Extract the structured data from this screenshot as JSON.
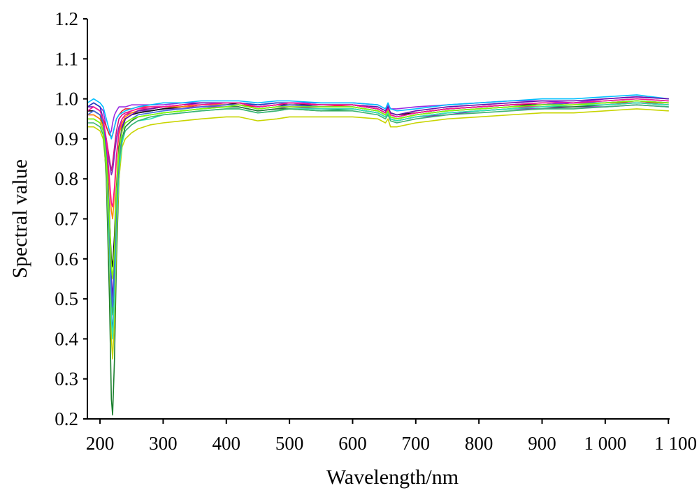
{
  "chart_data": {
    "type": "line",
    "title": "",
    "xlabel": "Wavelength/nm",
    "ylabel": "Spectral value",
    "xlim": [
      180,
      1102
    ],
    "ylim": [
      0.2,
      1.2
    ],
    "x_ticks": [
      200,
      300,
      400,
      500,
      600,
      700,
      800,
      900,
      1000,
      1100
    ],
    "x_tick_labels": [
      "200",
      "300",
      "400",
      "500",
      "600",
      "700",
      "800",
      "900",
      "1 000",
      "1 100"
    ],
    "y_ticks": [
      0.2,
      0.3,
      0.4,
      0.5,
      0.6,
      0.7,
      0.8,
      0.9,
      1.0,
      1.1,
      1.2
    ],
    "y_tick_labels": [
      "0.2",
      "0.3",
      "0.4",
      "0.5",
      "0.6",
      "0.7",
      "0.8",
      "0.9",
      "1.0",
      "1.1",
      "1.2"
    ],
    "grid": false,
    "legend": "none",
    "x": [
      180,
      190,
      200,
      205,
      210,
      215,
      218,
      220,
      223,
      226,
      230,
      235,
      240,
      250,
      260,
      280,
      300,
      330,
      360,
      400,
      420,
      450,
      480,
      500,
      550,
      600,
      640,
      652,
      656,
      660,
      670,
      700,
      750,
      800,
      850,
      900,
      950,
      1000,
      1050,
      1100
    ],
    "series": [
      {
        "color": "#9a2be2",
        "values": [
          0.98,
          0.99,
          0.98,
          0.97,
          0.93,
          0.91,
          0.92,
          0.94,
          0.96,
          0.97,
          0.98,
          0.98,
          0.98,
          0.985,
          0.985,
          0.985,
          0.985,
          0.99,
          0.99,
          0.99,
          0.99,
          0.985,
          0.99,
          0.99,
          0.99,
          0.99,
          0.985,
          0.975,
          0.985,
          0.975,
          0.975,
          0.98,
          0.985,
          0.99,
          0.995,
          0.995,
          0.99,
          1.0,
          1.005,
          1.0
        ]
      },
      {
        "color": "#e8262c",
        "values": [
          0.97,
          0.97,
          0.96,
          0.95,
          0.93,
          0.91,
          0.905,
          0.91,
          0.93,
          0.95,
          0.96,
          0.97,
          0.975,
          0.975,
          0.98,
          0.98,
          0.98,
          0.985,
          0.985,
          0.985,
          0.985,
          0.98,
          0.985,
          0.985,
          0.98,
          0.985,
          0.975,
          0.965,
          0.975,
          0.96,
          0.955,
          0.965,
          0.975,
          0.98,
          0.985,
          0.985,
          0.99,
          0.99,
          0.99,
          0.99
        ]
      },
      {
        "color": "#d6137f",
        "values": [
          0.96,
          0.96,
          0.95,
          0.93,
          0.9,
          0.85,
          0.82,
          0.84,
          0.88,
          0.92,
          0.95,
          0.96,
          0.965,
          0.97,
          0.975,
          0.975,
          0.98,
          0.98,
          0.98,
          0.985,
          0.985,
          0.975,
          0.98,
          0.98,
          0.98,
          0.98,
          0.97,
          0.96,
          0.97,
          0.955,
          0.95,
          0.96,
          0.97,
          0.975,
          0.98,
          0.98,
          0.985,
          0.985,
          0.99,
          0.985
        ]
      },
      {
        "color": "#7b2fbe",
        "values": [
          0.95,
          0.95,
          0.94,
          0.92,
          0.88,
          0.84,
          0.81,
          0.82,
          0.86,
          0.9,
          0.93,
          0.95,
          0.96,
          0.965,
          0.97,
          0.97,
          0.975,
          0.975,
          0.98,
          0.98,
          0.98,
          0.97,
          0.975,
          0.98,
          0.975,
          0.975,
          0.965,
          0.955,
          0.965,
          0.95,
          0.945,
          0.955,
          0.96,
          0.97,
          0.975,
          0.975,
          0.98,
          0.98,
          0.985,
          0.98
        ]
      },
      {
        "color": "#00bfff",
        "values": [
          0.99,
          1.0,
          0.99,
          0.98,
          0.95,
          0.92,
          0.9,
          0.91,
          0.93,
          0.95,
          0.96,
          0.965,
          0.97,
          0.975,
          0.98,
          0.985,
          0.99,
          0.99,
          0.995,
          0.995,
          0.995,
          0.99,
          0.995,
          0.995,
          0.99,
          0.99,
          0.985,
          0.975,
          0.99,
          0.975,
          0.97,
          0.975,
          0.985,
          0.99,
          0.995,
          1.0,
          1.0,
          1.005,
          1.01,
          1.0
        ]
      },
      {
        "color": "#1f3fbf",
        "values": [
          0.98,
          0.99,
          0.98,
          0.95,
          0.85,
          0.65,
          0.45,
          0.42,
          0.55,
          0.72,
          0.85,
          0.92,
          0.95,
          0.96,
          0.965,
          0.97,
          0.975,
          0.98,
          0.985,
          0.99,
          0.99,
          0.985,
          0.99,
          0.99,
          0.985,
          0.985,
          0.975,
          0.965,
          0.975,
          0.96,
          0.955,
          0.965,
          0.975,
          0.98,
          0.985,
          0.99,
          0.99,
          0.995,
          1.0,
          0.995
        ]
      },
      {
        "color": "#1a7f2e",
        "values": [
          0.97,
          0.97,
          0.96,
          0.93,
          0.8,
          0.5,
          0.25,
          0.21,
          0.35,
          0.6,
          0.8,
          0.9,
          0.93,
          0.945,
          0.955,
          0.96,
          0.965,
          0.97,
          0.975,
          0.98,
          0.98,
          0.97,
          0.975,
          0.975,
          0.97,
          0.975,
          0.965,
          0.955,
          0.965,
          0.95,
          0.945,
          0.955,
          0.965,
          0.97,
          0.975,
          0.98,
          0.98,
          0.985,
          0.99,
          0.985
        ]
      },
      {
        "color": "#111111",
        "values": [
          0.97,
          0.97,
          0.96,
          0.94,
          0.86,
          0.7,
          0.6,
          0.58,
          0.66,
          0.78,
          0.88,
          0.93,
          0.95,
          0.96,
          0.965,
          0.97,
          0.975,
          0.98,
          0.985,
          0.985,
          0.99,
          0.98,
          0.985,
          0.985,
          0.985,
          0.985,
          0.975,
          0.965,
          0.98,
          0.965,
          0.96,
          0.965,
          0.975,
          0.98,
          0.985,
          0.985,
          0.99,
          0.99,
          0.995,
          0.99
        ]
      },
      {
        "color": "#c8d400",
        "values": [
          0.93,
          0.93,
          0.92,
          0.9,
          0.82,
          0.6,
          0.4,
          0.35,
          0.45,
          0.65,
          0.8,
          0.88,
          0.9,
          0.915,
          0.925,
          0.935,
          0.94,
          0.945,
          0.95,
          0.955,
          0.955,
          0.945,
          0.95,
          0.955,
          0.955,
          0.955,
          0.95,
          0.94,
          0.95,
          0.93,
          0.93,
          0.94,
          0.95,
          0.955,
          0.96,
          0.965,
          0.965,
          0.97,
          0.975,
          0.97
        ]
      },
      {
        "color": "#2ee6b8",
        "values": [
          0.95,
          0.95,
          0.94,
          0.92,
          0.84,
          0.62,
          0.45,
          0.4,
          0.5,
          0.68,
          0.82,
          0.89,
          0.92,
          0.935,
          0.945,
          0.95,
          0.96,
          0.965,
          0.97,
          0.975,
          0.975,
          0.965,
          0.97,
          0.975,
          0.975,
          0.975,
          0.965,
          0.955,
          0.965,
          0.95,
          0.945,
          0.955,
          0.965,
          0.97,
          0.975,
          0.98,
          0.985,
          0.985,
          0.99,
          0.985
        ]
      },
      {
        "color": "#ff8c00",
        "values": [
          0.96,
          0.96,
          0.95,
          0.93,
          0.87,
          0.78,
          0.72,
          0.7,
          0.76,
          0.85,
          0.91,
          0.94,
          0.955,
          0.965,
          0.97,
          0.975,
          0.98,
          0.98,
          0.985,
          0.985,
          0.985,
          0.975,
          0.98,
          0.985,
          0.98,
          0.98,
          0.97,
          0.96,
          0.97,
          0.955,
          0.95,
          0.96,
          0.97,
          0.975,
          0.98,
          0.985,
          0.985,
          0.99,
          0.995,
          0.99
        ]
      },
      {
        "color": "#6a0dad",
        "values": [
          0.98,
          0.98,
          0.97,
          0.95,
          0.88,
          0.72,
          0.55,
          0.5,
          0.6,
          0.75,
          0.87,
          0.93,
          0.95,
          0.96,
          0.97,
          0.975,
          0.98,
          0.985,
          0.99,
          0.99,
          0.99,
          0.98,
          0.985,
          0.99,
          0.985,
          0.985,
          0.98,
          0.97,
          0.98,
          0.965,
          0.96,
          0.97,
          0.98,
          0.985,
          0.99,
          0.995,
          0.995,
          1.0,
          1.005,
          1.0
        ]
      },
      {
        "color": "#3cb371",
        "values": [
          0.94,
          0.94,
          0.93,
          0.91,
          0.83,
          0.66,
          0.5,
          0.46,
          0.56,
          0.72,
          0.84,
          0.9,
          0.92,
          0.935,
          0.945,
          0.955,
          0.96,
          0.965,
          0.97,
          0.975,
          0.975,
          0.965,
          0.97,
          0.975,
          0.97,
          0.97,
          0.96,
          0.95,
          0.96,
          0.945,
          0.94,
          0.95,
          0.96,
          0.965,
          0.97,
          0.975,
          0.975,
          0.98,
          0.985,
          0.98
        ]
      },
      {
        "color": "#4169e1",
        "values": [
          0.96,
          0.97,
          0.96,
          0.94,
          0.86,
          0.68,
          0.52,
          0.48,
          0.58,
          0.74,
          0.86,
          0.92,
          0.94,
          0.95,
          0.96,
          0.965,
          0.97,
          0.975,
          0.98,
          0.985,
          0.985,
          0.975,
          0.98,
          0.985,
          0.98,
          0.98,
          0.97,
          0.96,
          0.97,
          0.955,
          0.95,
          0.96,
          0.97,
          0.975,
          0.98,
          0.985,
          0.99,
          0.99,
          0.995,
          0.99
        ]
      },
      {
        "color": "#ff1493",
        "values": [
          0.97,
          0.98,
          0.97,
          0.95,
          0.9,
          0.8,
          0.74,
          0.73,
          0.78,
          0.86,
          0.92,
          0.95,
          0.96,
          0.97,
          0.975,
          0.98,
          0.98,
          0.985,
          0.985,
          0.99,
          0.99,
          0.98,
          0.985,
          0.99,
          0.985,
          0.985,
          0.975,
          0.965,
          0.975,
          0.96,
          0.955,
          0.965,
          0.975,
          0.98,
          0.985,
          0.99,
          0.99,
          0.995,
          1.0,
          0.995
        ]
      },
      {
        "color": "#7fff00",
        "values": [
          0.95,
          0.95,
          0.94,
          0.92,
          0.85,
          0.7,
          0.58,
          0.55,
          0.63,
          0.77,
          0.87,
          0.92,
          0.94,
          0.95,
          0.955,
          0.96,
          0.965,
          0.97,
          0.975,
          0.98,
          0.985,
          0.975,
          0.98,
          0.98,
          0.98,
          0.98,
          0.97,
          0.96,
          0.97,
          0.955,
          0.95,
          0.96,
          0.97,
          0.975,
          0.98,
          0.985,
          0.985,
          0.99,
          0.995,
          0.99
        ]
      }
    ]
  }
}
